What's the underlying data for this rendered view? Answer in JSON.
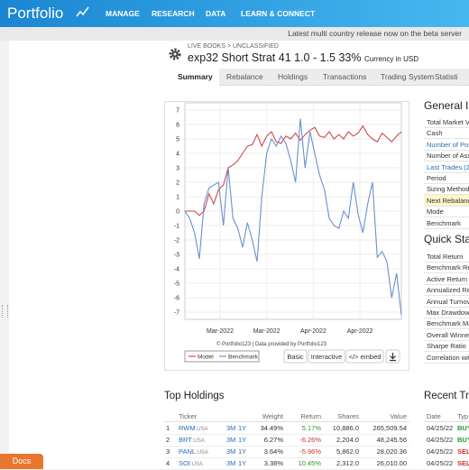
{
  "nav": {
    "logo": "Portfolio",
    "items": [
      "MANAGE",
      "RESEARCH",
      "DATA",
      "LEARN & CONNECT"
    ]
  },
  "banner": "Latest multi country release now on the beta server",
  "header": {
    "breadcrumb": "LIVE BOOKS > UNCLASSIFIED",
    "title": "exp32 Short Strat 41 1.0 - 1.5 33%",
    "currency": "Currency in USD"
  },
  "tabs": [
    "Summary",
    "Rebalance",
    "Holdings",
    "Transactions",
    "Trading System",
    "Statisti"
  ],
  "chart": {
    "type": "line",
    "ylim": [
      -7.5,
      7.5
    ],
    "yticks": [
      -7,
      -6,
      -5,
      -4,
      -3,
      -2,
      -1,
      0,
      1,
      2,
      3,
      4,
      5,
      6,
      7
    ],
    "xtick_labels": [
      "Mar-2022",
      "Mar-2022",
      "Apr-2022",
      "Apr-2022"
    ],
    "grid": true,
    "series": [
      {
        "name": "Model",
        "color": "#d04a4a",
        "values": [
          0,
          0,
          0,
          -0.3,
          0,
          1.2,
          0.5,
          1.5,
          1.8,
          3.0,
          3.2,
          3.5,
          4.0,
          4.5,
          4.6,
          5.3,
          4.5,
          5.2,
          5.5,
          4.8,
          4.7,
          5.2,
          5.0,
          5.4,
          4.9,
          5.3,
          5.6,
          5.8,
          5.2,
          5.1,
          5.5,
          5.0,
          5.3,
          5.0,
          5.5,
          5.2,
          5.4,
          5.9,
          5.3,
          5.0,
          4.8,
          5.4,
          5.1,
          4.8,
          5.2,
          5.5
        ]
      },
      {
        "name": "Benchmark",
        "color": "#6a8fd0",
        "values": [
          0,
          -0.5,
          -1.5,
          -3.3,
          0.5,
          1.6,
          1.8,
          2.0,
          -1.0,
          3.0,
          -0.5,
          -1.2,
          -2.5,
          -0.8,
          -2.0,
          -3.5,
          1.0,
          4.0,
          5.0,
          4.5,
          5.2,
          4.7,
          3.5,
          2.0,
          6.4,
          3.0,
          5.5,
          4.0,
          2.5,
          1.5,
          -0.5,
          -1.0,
          -1.2,
          0.0,
          -0.5,
          2.0,
          -0.2,
          -1.5,
          0.5,
          2.0,
          -3.2,
          -2.8,
          -3.5,
          -6.0,
          -4.3,
          -7.2
        ]
      }
    ],
    "credit": "© Portfolio123 | Data provided by Portfolio123",
    "buttons": [
      "Basic",
      "Interactive",
      "</> embed"
    ]
  },
  "general_info": {
    "title": "General In",
    "rows": [
      {
        "label": "Total Market V"
      },
      {
        "label": "Cash"
      },
      {
        "label": "Number of Pos",
        "link": true
      },
      {
        "label": "Number of Ass"
      },
      {
        "label": "Last Trades (2",
        "link": true
      },
      {
        "label": "Period"
      },
      {
        "label": "Sizing Method"
      },
      {
        "label": "Next Rebalanc",
        "highlight": true
      },
      {
        "label": "Mode"
      },
      {
        "label": "Benchmark"
      }
    ]
  },
  "quick_stats": {
    "title": "Quick Stat",
    "rows": [
      {
        "label": "Total Return"
      },
      {
        "label": "Benchmark Re"
      },
      {
        "label": "Active Return"
      },
      {
        "label": "Annualized Re"
      },
      {
        "label": "Annual Turnov"
      },
      {
        "label": "Max Drawdow"
      },
      {
        "label": "Benchmark Ma"
      },
      {
        "label": "Overall Winner"
      },
      {
        "label": "Sharpe Ratio"
      },
      {
        "label": "Correlation wit"
      }
    ]
  },
  "top_holdings": {
    "title": "Top Holdings",
    "columns": [
      "Ticker",
      "Weight",
      "Return",
      "Shares",
      "Value"
    ],
    "rows": [
      {
        "rank": "1",
        "ticker": "RWM",
        "exchange": ":USA",
        "p1": "3M",
        "p2": "1Y",
        "weight": "34.49%",
        "return": "5.17%",
        "shares": "10,886.0",
        "value": "265,509.54"
      },
      {
        "rank": "2",
        "ticker": "BRT",
        "exchange": ":USA",
        "p1": "3M",
        "p2": "1Y",
        "weight": "6.27%",
        "return": "-6.26%",
        "shares": "2,204.0",
        "value": "48,245.56"
      },
      {
        "rank": "3",
        "ticker": "PANL",
        "exchange": ":USA",
        "p1": "3M",
        "p2": "1Y",
        "weight": "3.64%",
        "return": "-5.96%",
        "shares": "5,862.0",
        "value": "28,020.36"
      },
      {
        "rank": "4",
        "ticker": "SOI",
        "exchange": ":USA",
        "p1": "3M",
        "p2": "1Y",
        "weight": "3.38%",
        "return": "10.45%",
        "shares": "2,312.0",
        "value": "26,010.00"
      }
    ]
  },
  "recent_trades": {
    "title": "Recent Tra",
    "columns": [
      "Date",
      "Typ"
    ],
    "rows": [
      [
        "04/25/22",
        "BUY"
      ],
      [
        "04/25/22",
        "BUY"
      ],
      [
        "04/25/22",
        "SEL"
      ],
      [
        "04/25/22",
        "SEL"
      ]
    ]
  },
  "docs": "Docs"
}
